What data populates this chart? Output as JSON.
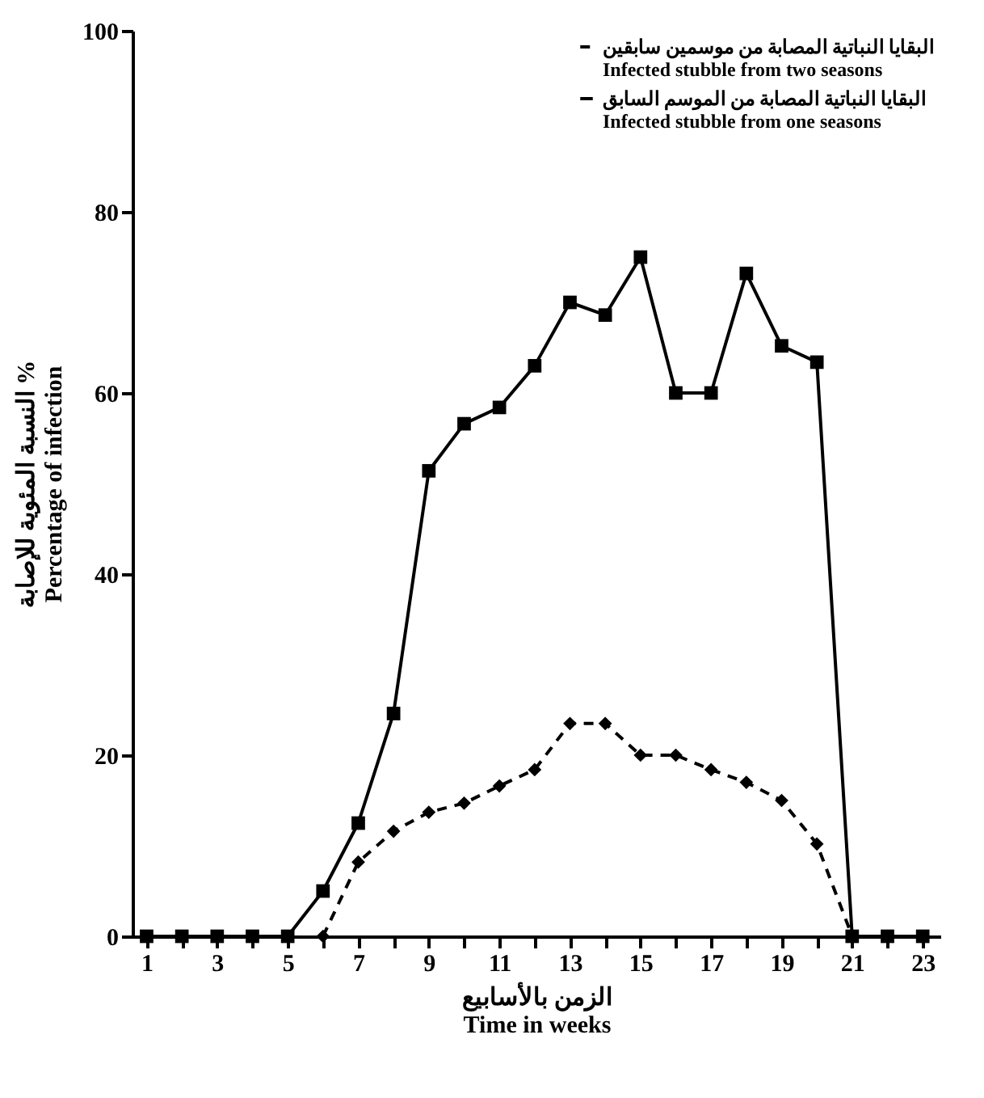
{
  "chart_data": {
    "type": "line",
    "xlabel": "الزمن بالأسابيع\nTime in weeks",
    "ylabel": "النسبة المئوية للإصابة %\nPercentage of infection",
    "x": [
      1,
      2,
      3,
      4,
      5,
      6,
      7,
      8,
      9,
      10,
      11,
      12,
      13,
      14,
      15,
      16,
      17,
      18,
      19,
      20,
      21,
      22,
      23
    ],
    "series": [
      {
        "name": "البقايا النباتية المصابة من موسمين سابقين\nInfected stubble from two seasons",
        "color": "#000000",
        "marker": "diamond",
        "line_style": "dashed",
        "values": [
          null,
          null,
          null,
          null,
          null,
          0,
          8.2,
          11.6,
          13.7,
          14.7,
          16.6,
          18.4,
          23.5,
          23.5,
          20,
          20,
          18.4,
          17,
          15,
          10.2,
          0,
          null,
          null
        ]
      },
      {
        "name": "البقايا النباتية المصابة من الموسم السابق\nInfected stubble from one seasons",
        "color": "#000000",
        "marker": "square",
        "line_style": "solid",
        "values": [
          0,
          0,
          0,
          0,
          0,
          5,
          12.5,
          24.6,
          51.4,
          56.6,
          58.4,
          63,
          70,
          68.6,
          75,
          60,
          60,
          73.2,
          65.2,
          63.4,
          0,
          0,
          0
        ]
      }
    ],
    "xlim": [
      0.6,
      23.5
    ],
    "xticks": [
      1,
      {
        "value": 2,
        "label": null
      },
      3,
      {
        "value": 4,
        "label": null
      },
      5,
      {
        "value": 6,
        "label": null
      },
      7,
      {
        "value": 8,
        "label": null
      },
      9,
      {
        "value": 10,
        "label": null
      },
      11,
      {
        "value": 12,
        "label": null
      },
      13,
      {
        "value": 14,
        "label": null
      },
      15,
      {
        "value": 16,
        "label": null
      },
      17,
      {
        "value": 18,
        "label": null
      },
      19,
      {
        "value": 20,
        "label": null
      },
      21,
      {
        "value": 22,
        "label": null
      },
      23
    ],
    "ylim": [
      0,
      100
    ],
    "yticks": [
      0,
      20,
      40,
      60,
      80,
      100
    ],
    "grid": false,
    "legend": "top right"
  }
}
